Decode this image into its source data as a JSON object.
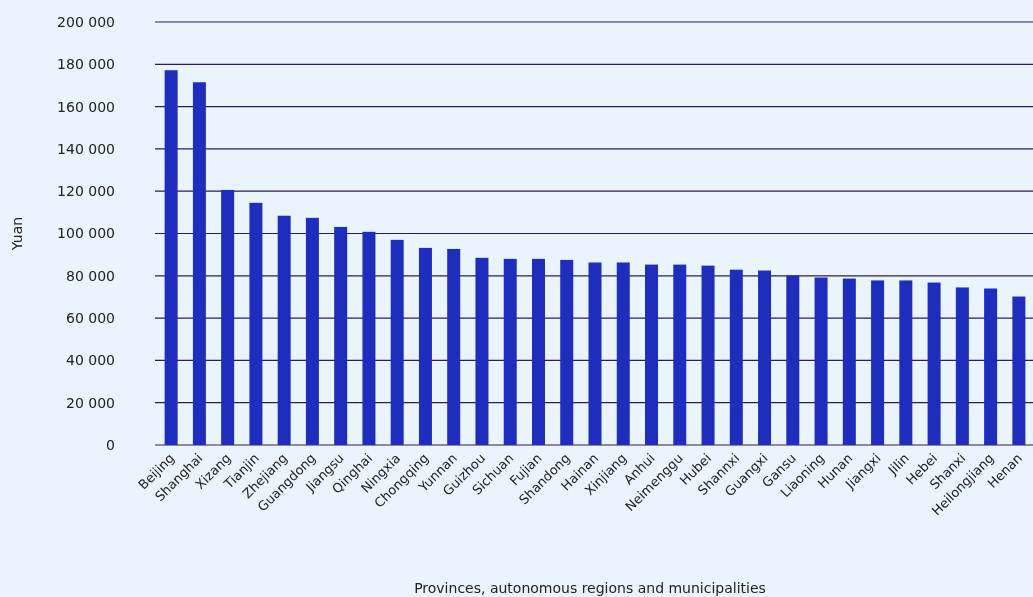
{
  "chart_data": {
    "type": "bar",
    "xlabel": "Provinces, autonomous regions and municipalities",
    "ylabel": "Yuan",
    "categories": [
      "Beijing",
      "Shanghai",
      "Xizang",
      "Tianjin",
      "Zhejiang",
      "Guangdong",
      "Jiangsu",
      "Qinghai",
      "Ningxia",
      "Chongqing",
      "Yunnan",
      "Guizhou",
      "Sichuan",
      "Fujian",
      "Shandong",
      "Hainan",
      "Xinjiang",
      "Anhui",
      "Neimenggu",
      "Hubei",
      "Shannxi",
      "Guangxi",
      "Gansu",
      "Liaoning",
      "Hunan",
      "Jiangxi",
      "Jilin",
      "Hebei",
      "Shanxi",
      "Heilongjiang",
      "Henan"
    ],
    "values": [
      177200,
      171500,
      120600,
      114500,
      108400,
      107400,
      103100,
      100800,
      97000,
      93200,
      92700,
      88500,
      88000,
      88000,
      87500,
      86300,
      86300,
      85300,
      85300,
      84800,
      82900,
      82500,
      80100,
      79200,
      78700,
      77800,
      77800,
      76800,
      74500,
      74000,
      70200
    ],
    "color": "#1f2dbd",
    "ylim": [
      0,
      200000
    ],
    "yticks": [
      {
        "value": 0,
        "label": "0"
      },
      {
        "value": 20000,
        "label": "20 000"
      },
      {
        "value": 40000,
        "label": "40 000"
      },
      {
        "value": 60000,
        "label": "60 000"
      },
      {
        "value": 80000,
        "label": "80 000"
      },
      {
        "value": 100000,
        "label": "100 000"
      },
      {
        "value": 120000,
        "label": "120 000"
      },
      {
        "value": 140000,
        "label": "140 000"
      },
      {
        "value": 160000,
        "label": "160 000"
      },
      {
        "value": 180000,
        "label": "180 000"
      },
      {
        "value": 200000,
        "label": "200 000"
      }
    ],
    "grid": "y"
  }
}
